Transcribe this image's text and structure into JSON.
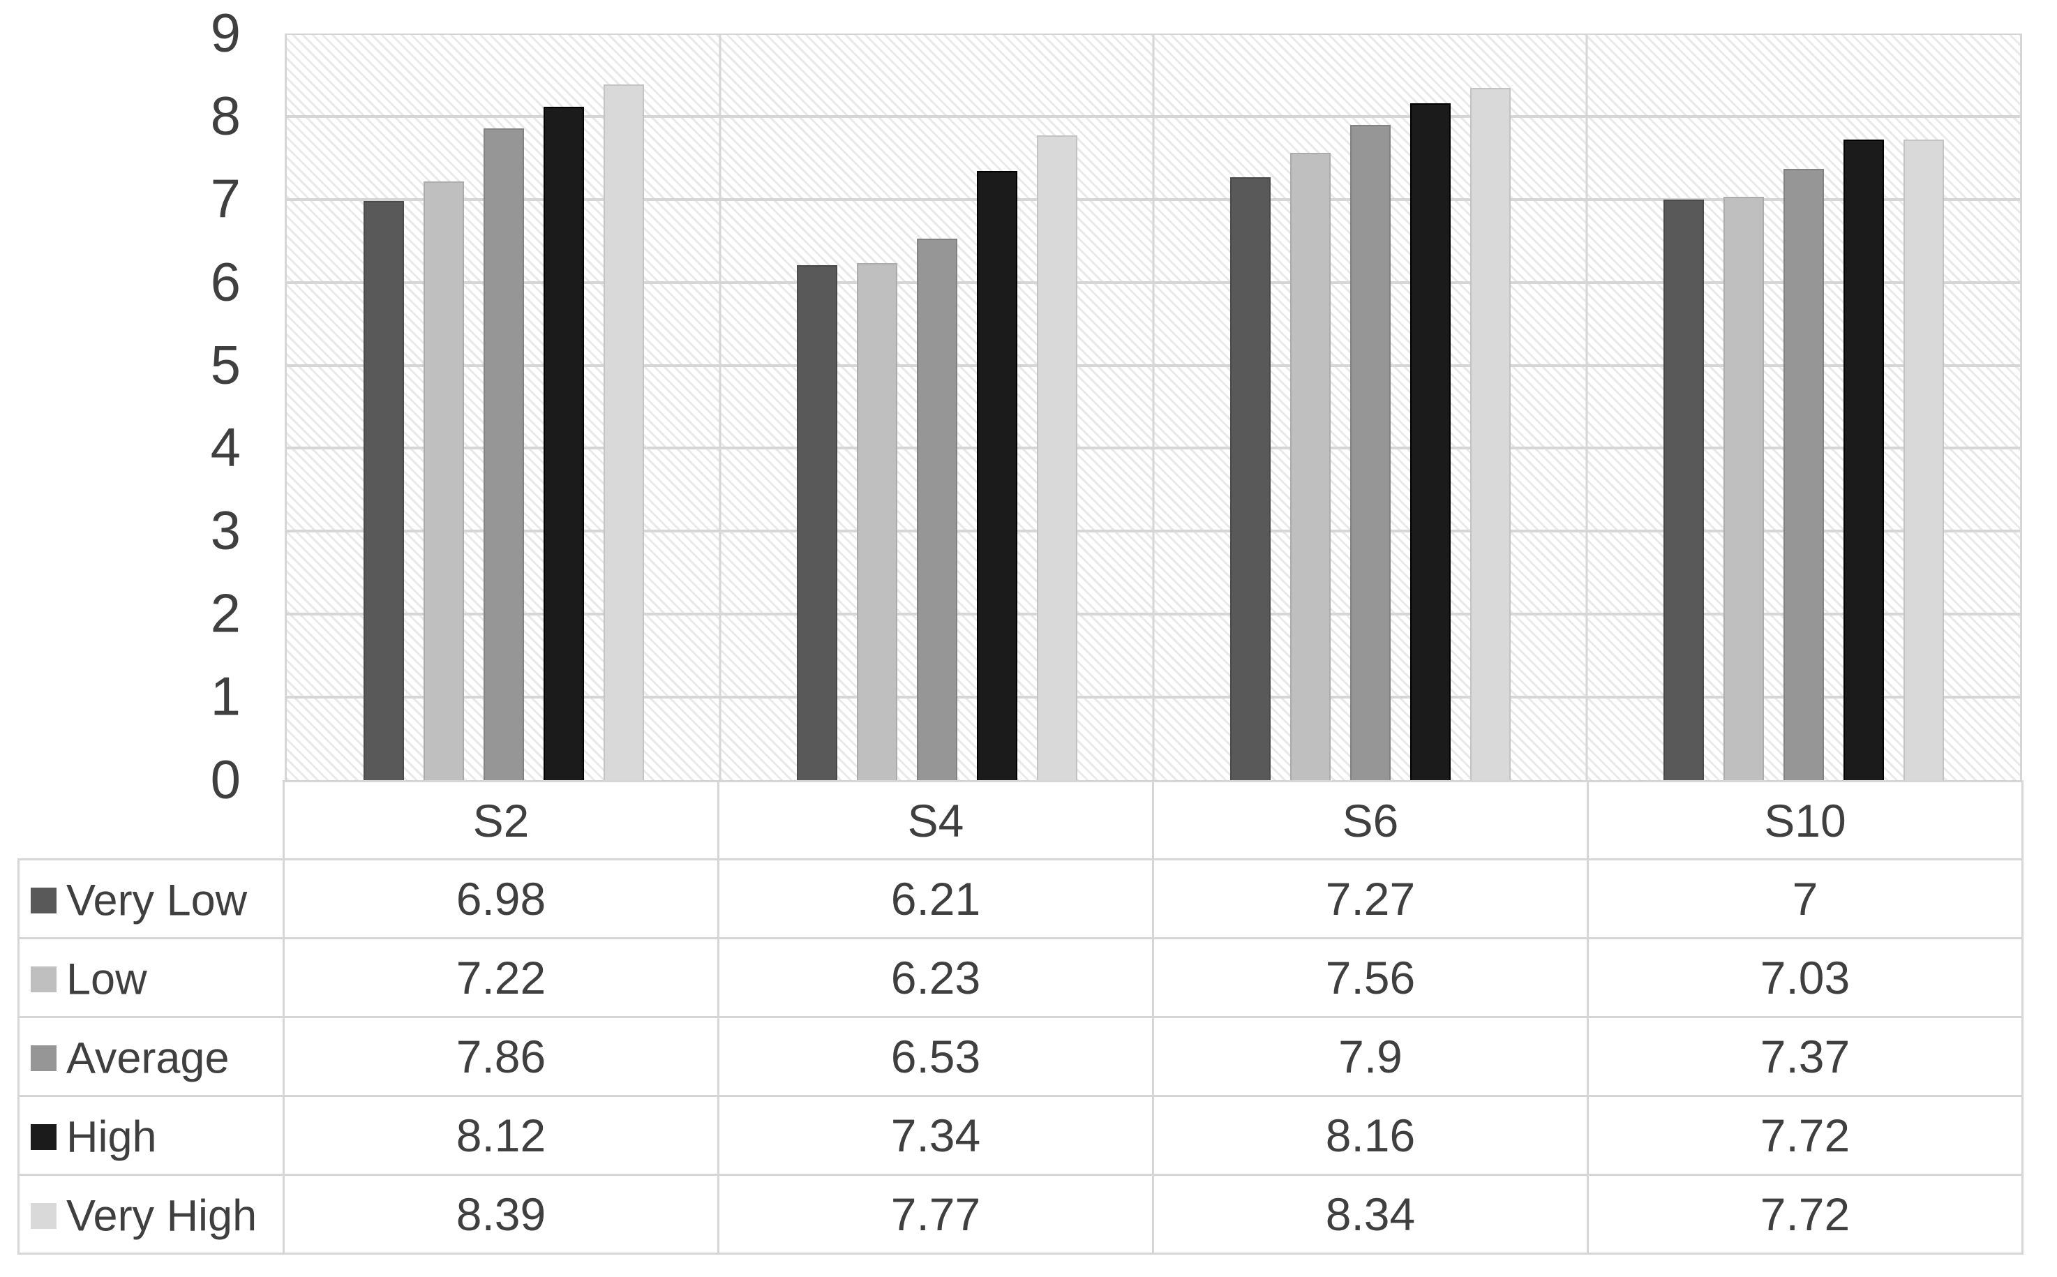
{
  "figure": {
    "background": "#ffffff",
    "text_color": "#3f3f3f",
    "grid_color": "#d6d6d6",
    "hatch_line_color": "#e9e9e9",
    "plot_border_color": "#d6d6d6"
  },
  "chart_data": {
    "type": "bar",
    "title": "",
    "xlabel": "",
    "ylabel": "",
    "categories": [
      "S2",
      "S4",
      "S6",
      "S10"
    ],
    "series": [
      {
        "name": "Very Low",
        "color": "#595959",
        "border_color": "#4a4a4a",
        "values": [
          6.98,
          6.21,
          7.27,
          7
        ]
      },
      {
        "name": "Low",
        "color": "#bfbfbf",
        "border_color": "#ababab",
        "values": [
          7.22,
          6.23,
          7.56,
          7.03
        ]
      },
      {
        "name": "Average",
        "color": "#969696",
        "border_color": "#828282",
        "values": [
          7.86,
          6.53,
          7.9,
          7.37
        ]
      },
      {
        "name": "High",
        "color": "#1b1b1b",
        "border_color": "#000000",
        "values": [
          8.12,
          7.34,
          8.16,
          7.72
        ]
      },
      {
        "name": "Very High",
        "color": "#d9d9d9",
        "border_color": "#c3c3c3",
        "values": [
          8.39,
          7.77,
          8.34,
          7.72
        ]
      }
    ],
    "ylim": [
      0,
      9
    ],
    "yticks": [
      0,
      1,
      2,
      3,
      4,
      5,
      6,
      7,
      8,
      9
    ],
    "grid": true,
    "plot_background": "diagonal-hatch",
    "legend_position": "table-left-column",
    "data_table": true
  }
}
